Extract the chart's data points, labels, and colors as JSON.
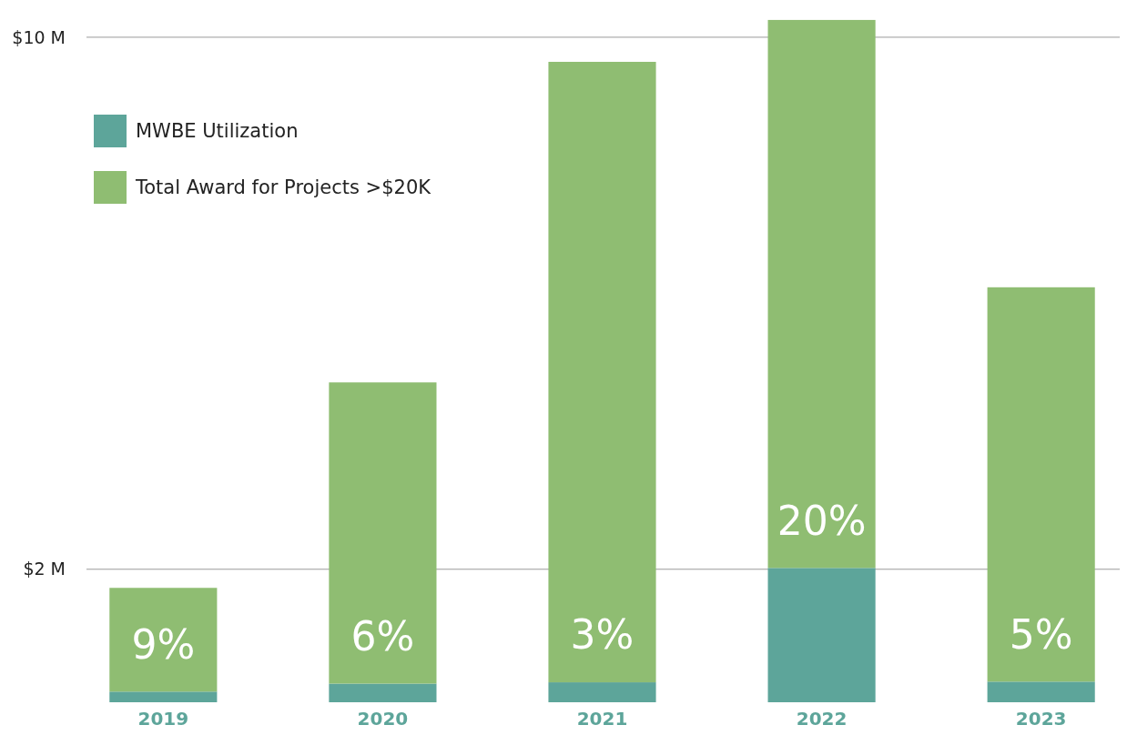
{
  "chart_data": {
    "type": "bar",
    "stacked": true,
    "categories": [
      "2019",
      "2020",
      "2021",
      "2022",
      "2023"
    ],
    "series": [
      {
        "name": "MWBE Utilization",
        "color": "#5da59a",
        "values": [
          0.16,
          0.28,
          0.3,
          2.02,
          0.31
        ]
      },
      {
        "name": "Total Award for Projects >$20K",
        "color": "#8fbd72",
        "values": [
          1.56,
          4.53,
          9.33,
          8.24,
          5.93
        ]
      }
    ],
    "ylim": [
      0,
      10.3
    ],
    "yticks": [
      {
        "value": 2,
        "label": "$2 M"
      },
      {
        "value": 10,
        "label": "$10 M"
      }
    ],
    "grid": "y",
    "legend": "top left",
    "annotations": [
      "9%",
      "6%",
      "3%",
      "20%",
      "5%"
    ]
  }
}
